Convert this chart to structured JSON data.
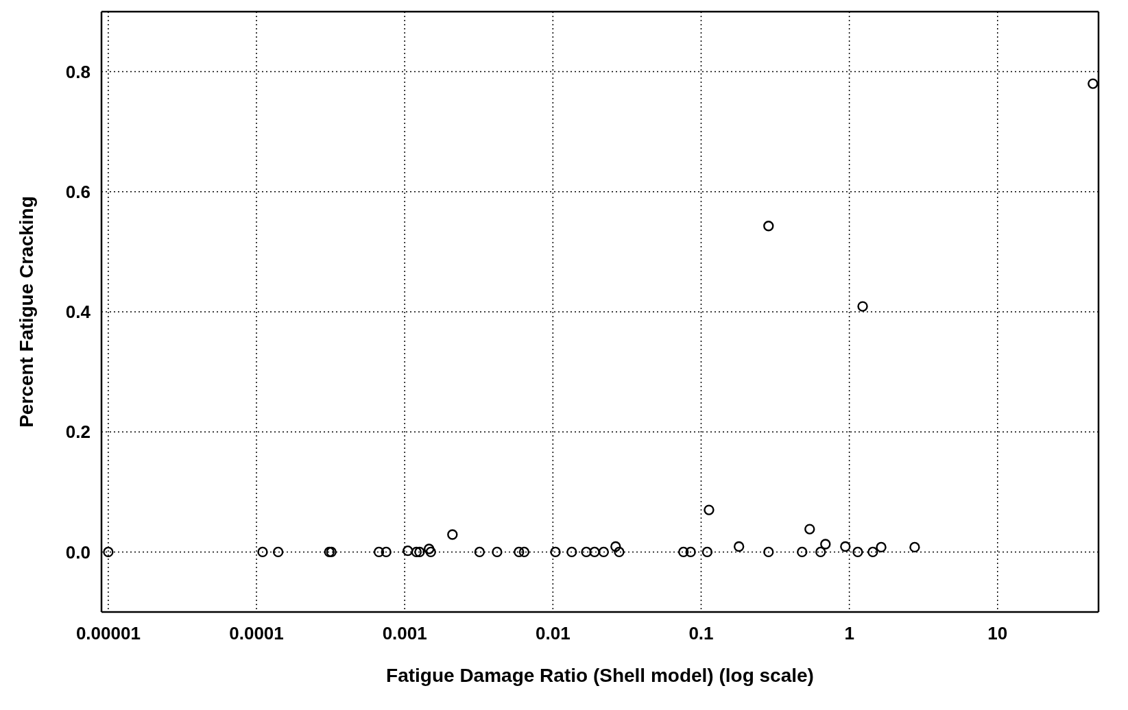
{
  "chart_data": {
    "type": "scatter",
    "xlabel": "Fatigue Damage Ratio (Shell model) (log scale)",
    "ylabel": "Percent Fatigue Cracking",
    "log": "x",
    "grid": true,
    "marker": "circle",
    "legend": false,
    "xlim": [
      9e-06,
      48
    ],
    "xticks": [
      {
        "value": 1e-05,
        "label": "0.00001"
      },
      0.0001,
      0.001,
      0.01,
      0.1,
      1,
      10
    ],
    "ylim": [
      -0.1,
      0.9
    ],
    "yticks": [
      {
        "value": 0,
        "label": "0.0"
      },
      {
        "value": 0.2,
        "label": "0.2"
      },
      {
        "value": 0.4,
        "label": "0.4"
      },
      {
        "value": 0.6,
        "label": "0.6"
      },
      {
        "value": 0.8,
        "label": "0.8"
      }
    ],
    "series": [
      {
        "color": "#000000",
        "x": [
          1e-05,
          0.00011,
          0.00014,
          0.00031,
          0.00032,
          0.00067,
          0.00075,
          0.00105,
          0.0012,
          0.00126,
          0.00146,
          0.0015,
          0.0021,
          0.0032,
          0.0042,
          0.0059,
          0.0064,
          0.0104,
          0.0134,
          0.0168,
          0.0191,
          0.022,
          0.0265,
          0.028,
          0.076,
          0.085,
          0.11,
          0.113,
          0.18,
          0.285,
          0.285,
          0.48,
          0.54,
          0.64,
          0.69,
          0.94,
          1.14,
          1.23,
          1.44,
          1.64,
          2.76,
          44
        ],
        "values": [
          0,
          0,
          0,
          0,
          0,
          0,
          0,
          0.002,
          0,
          0,
          0.005,
          0,
          0.029,
          0,
          0,
          0,
          0,
          0,
          0,
          0,
          0,
          0,
          0.009,
          0,
          0,
          0,
          0,
          0.07,
          0.009,
          0.543,
          0,
          0,
          0.038,
          0,
          0.013,
          0.009,
          0,
          0.409,
          0,
          0.008,
          0.008,
          0.78
        ]
      }
    ]
  }
}
